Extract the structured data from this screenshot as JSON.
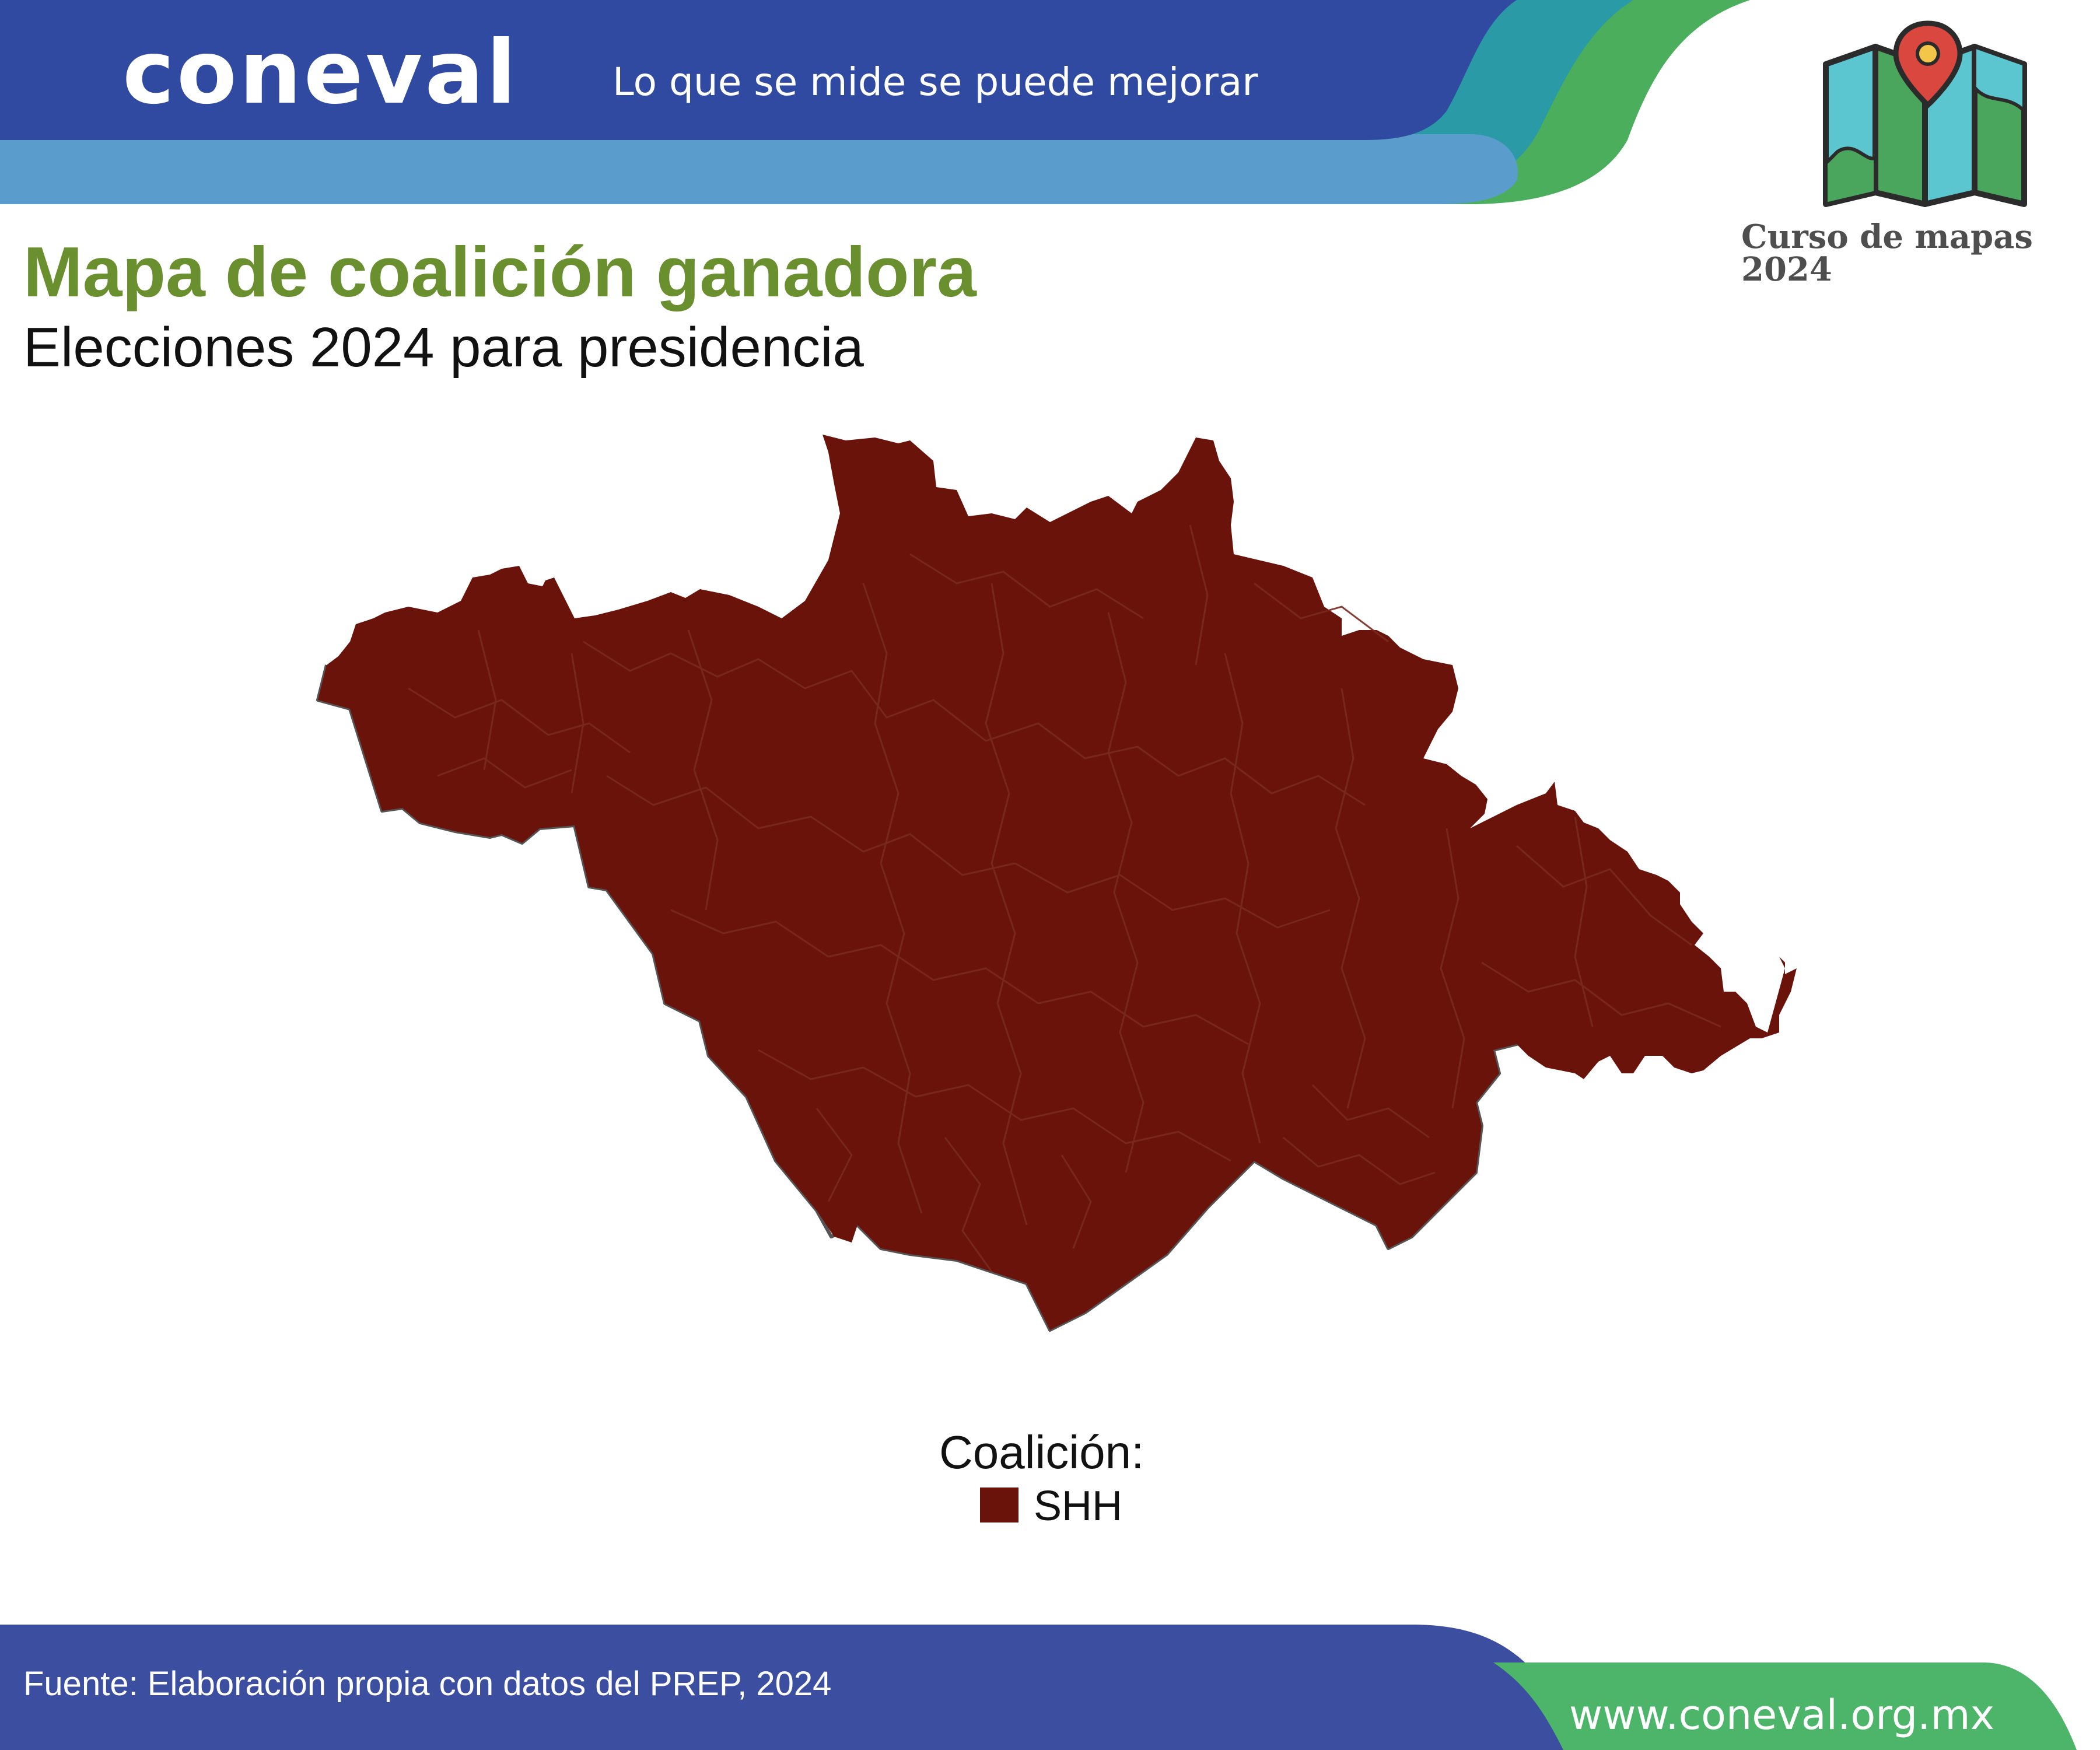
{
  "header": {
    "logo_text": "coneval",
    "tagline": "Lo que se mide se puede mejorar",
    "course_label": "Curso de mapas 2024",
    "map_icon": "folded-map-with-pin-icon"
  },
  "title": "Mapa de coalición ganadora",
  "subtitle": "Elecciones 2024 para presidencia",
  "map": {
    "region_fill": "#6a130a",
    "border_color": "#555555",
    "legend": {
      "title": "Coalición:",
      "items": [
        {
          "label": "SHH",
          "color": "#6a130a"
        }
      ]
    }
  },
  "footer": {
    "source": "Fuente: Elaboración propia con datos del PREP, 2024",
    "website": "www.coneval.org.mx"
  },
  "colors": {
    "header_blue": "#2f4aa0",
    "header_light_blue": "#5a9ccb",
    "teal": "#2a9aa6",
    "green": "#4aae5c",
    "title_green": "#6a8f2e",
    "footer_blue": "#3c4ea0",
    "footer_green": "#4db56a"
  }
}
